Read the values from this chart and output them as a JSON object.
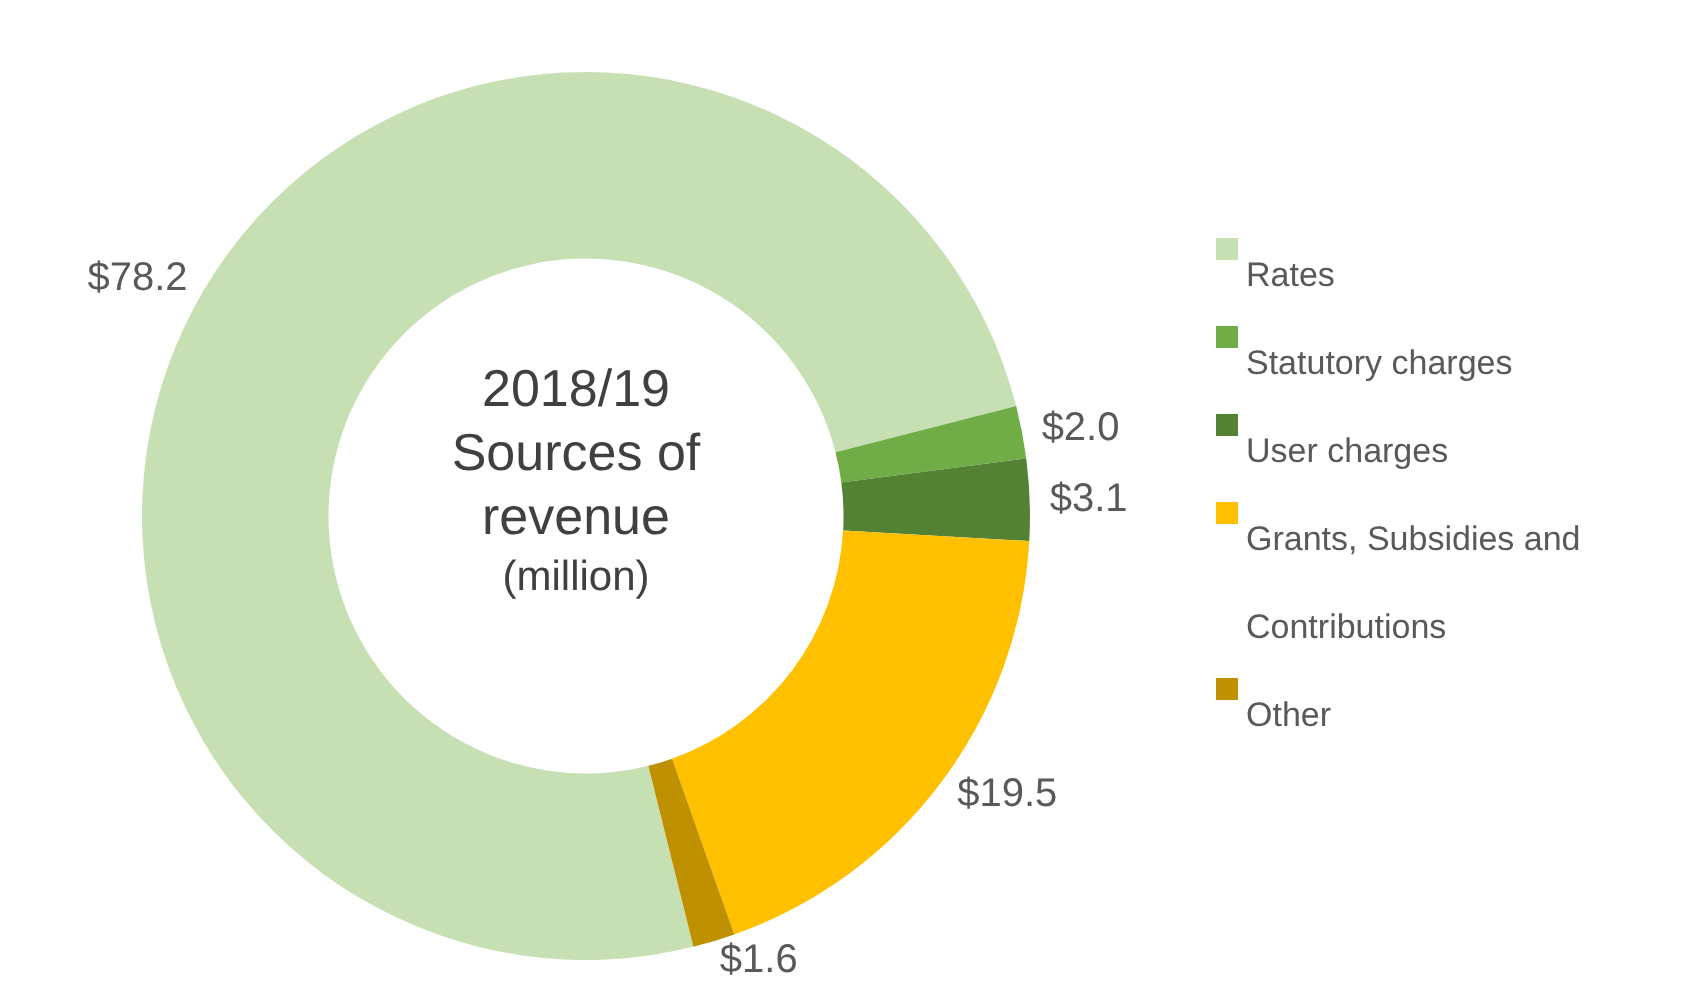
{
  "chart_data": {
    "type": "donut",
    "title": "2018/19 Sources of revenue",
    "subtitle": "(million)",
    "categories": [
      "Rates",
      "Statutory charges",
      "User charges",
      "Grants, Subsidies and Contributions",
      "Other"
    ],
    "values": [
      78.2,
      2.0,
      3.1,
      19.5,
      1.6
    ],
    "colors": [
      "#c6e0b4",
      "#70ad47",
      "#548235",
      "#ffc000",
      "#bf9000"
    ],
    "value_labels": [
      "$78.2",
      "$2.0",
      "$3.1",
      "$19.5",
      "$1.6"
    ],
    "legend": "right"
  }
}
